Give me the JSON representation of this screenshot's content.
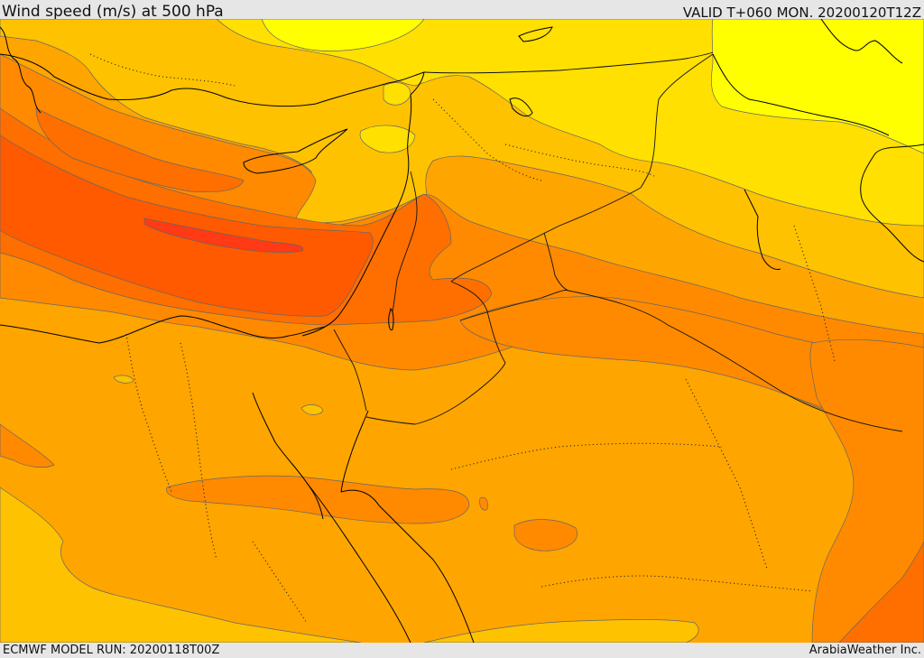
{
  "header": {
    "title": "Wind speed (m/s) at 500 hPa",
    "valid_time": "VALID T+060 MON. 20200120T12Z"
  },
  "footer": {
    "model_run": "ECMWF MODEL RUN: 20200118T00Z",
    "credit": "ArabiaWeather Inc."
  },
  "colors": {
    "band_yellow": "#ffff00",
    "band_gold": "#ffe000",
    "band_amber": "#ffc200",
    "band_light_orange": "#ffa500",
    "band_orange": "#ff8a00",
    "band_dark_orange": "#ff6f00",
    "band_red_orange": "#ff5a00",
    "band_red": "#ff3a14",
    "coastline": "#000000",
    "contour_line": "#555555"
  }
}
